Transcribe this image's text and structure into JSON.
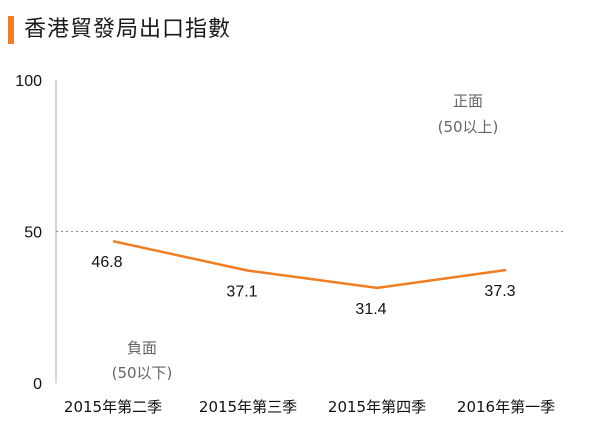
{
  "header": {
    "title": "香港貿發局出口指數",
    "accent_color": "#f07d22"
  },
  "chart_data": {
    "type": "line",
    "categories": [
      "2015年第二季",
      "2015年第三季",
      "2015年第四季",
      "2016年第一季"
    ],
    "values": [
      46.8,
      37.1,
      31.4,
      37.3
    ],
    "ylim": [
      0,
      100
    ],
    "yticks": [
      "0",
      "50",
      "100"
    ],
    "data_labels": [
      "46.8",
      "37.1",
      "31.4",
      "37.3"
    ],
    "reference_line": {
      "value": 50,
      "style": "dotted"
    },
    "annotations": {
      "positive": [
        "正面",
        "(50以上)"
      ],
      "negative": [
        "負面",
        "(50以下)"
      ]
    },
    "line_color": "#f07d22",
    "grid": false
  }
}
